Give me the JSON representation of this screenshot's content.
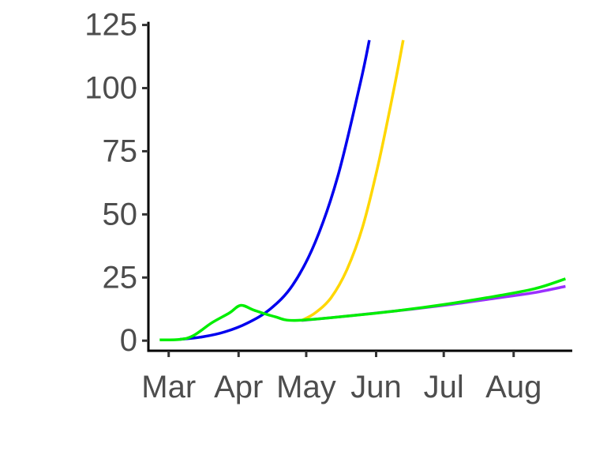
{
  "chart_data": {
    "type": "line",
    "title": "",
    "xlabel": "",
    "ylabel": "",
    "x_axis": {
      "type": "date",
      "range": [
        "2020-02-21",
        "2020-08-27"
      ],
      "ticks": [
        {
          "date": "2020-03-01",
          "label": "Mar"
        },
        {
          "date": "2020-04-01",
          "label": "Apr"
        },
        {
          "date": "2020-05-01",
          "label": "May"
        },
        {
          "date": "2020-06-01",
          "label": "Jun"
        },
        {
          "date": "2020-07-01",
          "label": "Jul"
        },
        {
          "date": "2020-08-01",
          "label": "Aug"
        }
      ]
    },
    "y_axis": {
      "range": [
        -4,
        128
      ],
      "ticks": [
        0,
        25,
        50,
        75,
        100,
        125
      ],
      "tick_labels": [
        "0",
        "25",
        "50",
        "75",
        "100",
        "125"
      ]
    },
    "grid": false,
    "legend": "none",
    "series": [
      {
        "color": "#0000EE",
        "points": [
          [
            "2020-03-06",
            0.5
          ],
          [
            "2020-03-16",
            1.5
          ],
          [
            "2020-03-26",
            3.5
          ],
          [
            "2020-04-05",
            7.0
          ],
          [
            "2020-04-15",
            12.5
          ],
          [
            "2020-04-25",
            22.0
          ],
          [
            "2020-05-05",
            39.0
          ],
          [
            "2020-05-15",
            65.0
          ],
          [
            "2020-05-25",
            102.0
          ],
          [
            "2020-05-29",
            119.0
          ]
        ]
      },
      {
        "color": "#FFD700",
        "points": [
          [
            "2020-04-29",
            8.0
          ],
          [
            "2020-05-05",
            11.0
          ],
          [
            "2020-05-12",
            17.0
          ],
          [
            "2020-05-19",
            28.0
          ],
          [
            "2020-05-26",
            45.0
          ],
          [
            "2020-06-02",
            70.0
          ],
          [
            "2020-06-09",
            100.0
          ],
          [
            "2020-06-13",
            119.0
          ]
        ]
      },
      {
        "color": "#9B30FF",
        "points": [
          [
            "2020-04-29",
            8.0
          ],
          [
            "2020-05-20",
            9.8
          ],
          [
            "2020-06-10",
            11.8
          ],
          [
            "2020-07-01",
            14.0
          ],
          [
            "2020-07-20",
            16.3
          ],
          [
            "2020-08-10",
            19.0
          ],
          [
            "2020-08-24",
            21.5
          ]
        ]
      },
      {
        "color": "#00EE00",
        "points": [
          [
            "2020-02-26",
            0.3
          ],
          [
            "2020-03-06",
            0.5
          ],
          [
            "2020-03-12",
            2.0
          ],
          [
            "2020-03-20",
            7.0
          ],
          [
            "2020-03-28",
            11.0
          ],
          [
            "2020-04-02",
            14.0
          ],
          [
            "2020-04-08",
            12.0
          ],
          [
            "2020-04-17",
            9.5
          ],
          [
            "2020-04-26",
            8.0
          ],
          [
            "2020-05-20",
            9.8
          ],
          [
            "2020-06-10",
            11.8
          ],
          [
            "2020-07-01",
            14.3
          ],
          [
            "2020-07-20",
            17.0
          ],
          [
            "2020-08-10",
            20.5
          ],
          [
            "2020-08-24",
            24.5
          ]
        ]
      }
    ]
  }
}
